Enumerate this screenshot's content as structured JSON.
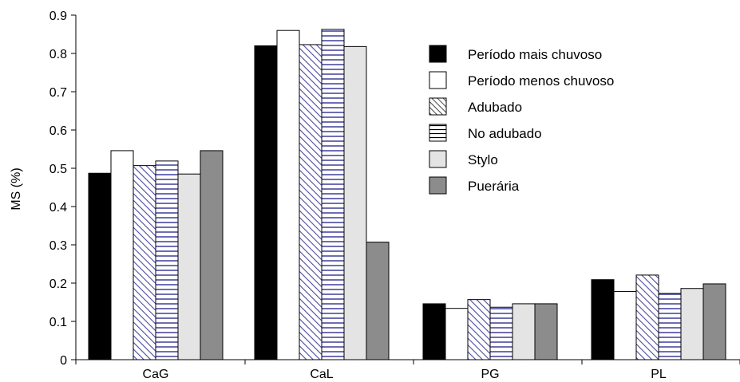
{
  "chart_data": {
    "type": "bar",
    "categories": [
      "CaG",
      "CaL",
      "PG",
      "PL"
    ],
    "ylabel": "MS (%)",
    "xlabel": "",
    "ylim": [
      0,
      0.9
    ],
    "yticks": [
      "0",
      "0.1",
      "0.2",
      "0.3",
      "0.4",
      "0.5",
      "0.6",
      "0.7",
      "0.8",
      "0.9"
    ],
    "grid": false,
    "legend_position": "top-right",
    "series": [
      {
        "name": "Período mais chuvoso",
        "values": [
          0.487,
          0.82,
          0.146,
          0.209
        ],
        "fill": "solid",
        "color": "#000000"
      },
      {
        "name": "Período menos chuvoso",
        "values": [
          0.546,
          0.86,
          0.134,
          0.178
        ],
        "fill": "solid",
        "color": "#ffffff"
      },
      {
        "name": "Adubado",
        "values": [
          0.507,
          0.823,
          0.157,
          0.221
        ],
        "fill": "diagonal-hatch",
        "color": "#4a4aa0"
      },
      {
        "name": "No adubado",
        "values": [
          0.519,
          0.863,
          0.137,
          0.173
        ],
        "fill": "horizontal-lines",
        "color": "#4a4aa0"
      },
      {
        "name": "Stylo",
        "values": [
          0.485,
          0.818,
          0.146,
          0.186
        ],
        "fill": "solid",
        "color": "#e4e4e4"
      },
      {
        "name": "Puerária",
        "values": [
          0.546,
          0.307,
          0.146,
          0.198
        ],
        "fill": "solid",
        "color": "#8c8c8c"
      }
    ]
  }
}
